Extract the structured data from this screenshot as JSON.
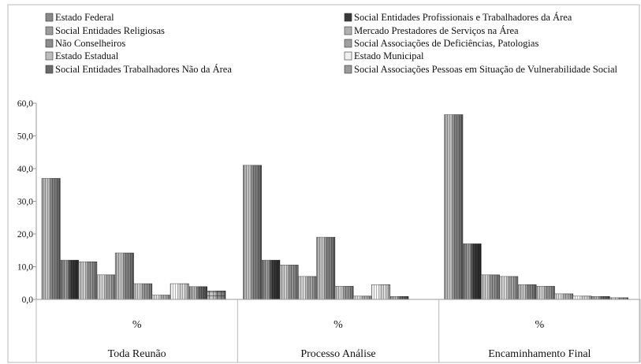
{
  "chart_data": {
    "type": "bar",
    "categories": [
      "Toda Reunão",
      "Processo Análise",
      "Encaminhamento Final"
    ],
    "category_sublabel": "%",
    "ylim": [
      0,
      60
    ],
    "yticks": [
      "0,0",
      "10,0",
      "20,0",
      "30,0",
      "40,0",
      "50,0",
      "60,0"
    ],
    "legend_position": "top",
    "grid": false,
    "series": [
      {
        "name": "Estado Federal",
        "values": [
          37.0,
          41.0,
          56.5
        ]
      },
      {
        "name": "Social Entidades Profissionais e Trabalhadores da Área",
        "values": [
          12.0,
          12.0,
          17.0
        ]
      },
      {
        "name": "Social Entidades Religiosas",
        "values": [
          11.5,
          10.5,
          7.5
        ]
      },
      {
        "name": "Mercado Prestadores de Serviços na Área",
        "values": [
          7.5,
          7.0,
          7.0
        ]
      },
      {
        "name": "Não Conselheiros",
        "values": [
          14.2,
          19.0,
          4.5
        ]
      },
      {
        "name": "Social Associações de Deficiências, Patologias",
        "values": [
          4.8,
          4.0,
          4.0
        ]
      },
      {
        "name": "Estado Estadual",
        "values": [
          1.3,
          1.0,
          1.7
        ]
      },
      {
        "name": "Estado Municipal",
        "values": [
          4.8,
          4.5,
          1.0
        ]
      },
      {
        "name": "Social Entidades Trabalhadores Não da Área",
        "values": [
          3.9,
          0.9,
          0.9
        ]
      },
      {
        "name": "Social Associações Pessoas em Situação de Vulnerabilidade Social",
        "values": [
          2.6,
          0,
          0.5
        ]
      }
    ]
  },
  "colors": {
    "series": [
      "#8a8a8a",
      "#3a3a3a",
      "#9c9c9c",
      "#b0b0b0",
      "#8c8c8c",
      "#a0a0a0",
      "#bdbdbd",
      "#f0f0f0",
      "#6a6a6a",
      "#9a9a9a"
    ],
    "frame": "#b8b8b8"
  }
}
